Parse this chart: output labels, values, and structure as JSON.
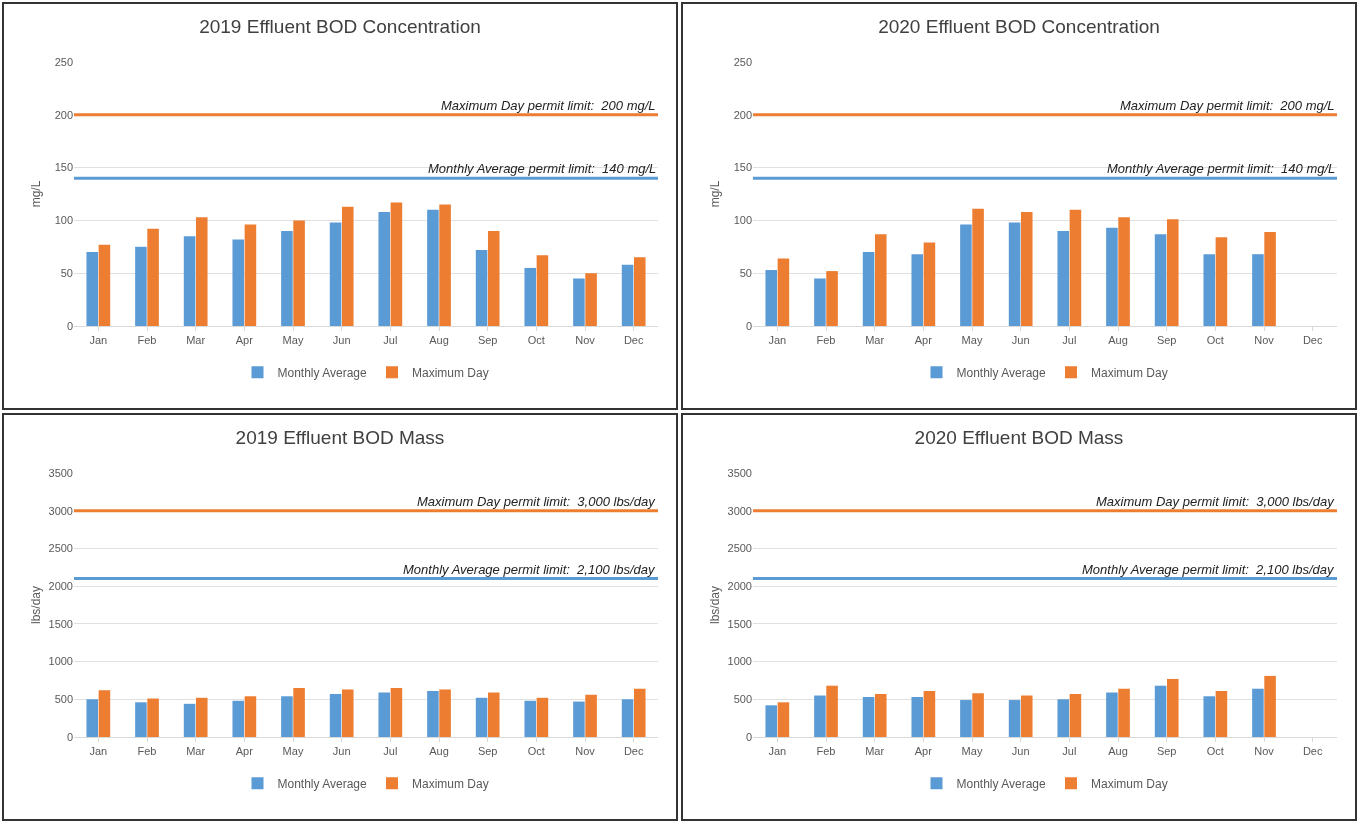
{
  "chart_data": [
    {
      "type": "bar",
      "title": "2019 Effluent BOD Concentration",
      "ylabel": "mg/L",
      "categories": [
        "Jan",
        "Feb",
        "Mar",
        "Apr",
        "May",
        "Jun",
        "Jul",
        "Aug",
        "Sep",
        "Oct",
        "Nov",
        "Dec"
      ],
      "series": [
        {
          "name": "Monthly Average",
          "color": "#5b9bd5",
          "values": [
            70,
            75,
            85,
            82,
            90,
            98,
            108,
            110,
            72,
            55,
            45,
            58
          ]
        },
        {
          "name": "Maximum Day",
          "color": "#ed7d31",
          "values": [
            77,
            92,
            103,
            96,
            100,
            113,
            117,
            115,
            90,
            67,
            50,
            65
          ]
        }
      ],
      "ylim": [
        0,
        250
      ],
      "yticks": [
        0,
        50,
        100,
        150,
        200,
        250
      ],
      "grid": "y",
      "legend": "bottom",
      "ref_lines": [
        {
          "axis": "y",
          "value": 200,
          "label": "Maximum Day permit limit:  200 mg/L",
          "color": "#ed7d31"
        },
        {
          "axis": "y",
          "value": 140,
          "label": "Monthly Average permit limit:  140 mg/L",
          "color": "#5b9bd5"
        }
      ]
    },
    {
      "type": "bar",
      "title": "2020 Effluent BOD Concentration",
      "ylabel": "mg/L",
      "categories": [
        "Jan",
        "Feb",
        "Mar",
        "Apr",
        "May",
        "Jun",
        "Jul",
        "Aug",
        "Sep",
        "Oct",
        "Nov",
        "Dec"
      ],
      "series": [
        {
          "name": "Monthly Average",
          "color": "#5b9bd5",
          "values": [
            53,
            45,
            70,
            68,
            96,
            98,
            90,
            93,
            87,
            68,
            68,
            null
          ]
        },
        {
          "name": "Maximum Day",
          "color": "#ed7d31",
          "values": [
            64,
            52,
            87,
            79,
            111,
            108,
            110,
            103,
            101,
            84,
            89,
            null
          ]
        }
      ],
      "ylim": [
        0,
        250
      ],
      "yticks": [
        0,
        50,
        100,
        150,
        200,
        250
      ],
      "grid": "y",
      "legend": "bottom",
      "ref_lines": [
        {
          "axis": "y",
          "value": 200,
          "label": "Maximum Day permit limit:  200 mg/L",
          "color": "#ed7d31"
        },
        {
          "axis": "y",
          "value": 140,
          "label": "Monthly Average permit limit:  140 mg/L",
          "color": "#5b9bd5"
        }
      ]
    },
    {
      "type": "bar",
      "title": "2019 Effluent BOD Mass",
      "ylabel": "lbs/day",
      "categories": [
        "Jan",
        "Feb",
        "Mar",
        "Apr",
        "May",
        "Jun",
        "Jul",
        "Aug",
        "Sep",
        "Oct",
        "Nov",
        "Dec"
      ],
      "series": [
        {
          "name": "Monthly Average",
          "color": "#5b9bd5",
          "values": [
            500,
            460,
            440,
            480,
            540,
            570,
            590,
            610,
            520,
            480,
            470,
            500
          ]
        },
        {
          "name": "Maximum Day",
          "color": "#ed7d31",
          "values": [
            620,
            510,
            520,
            540,
            650,
            630,
            650,
            630,
            590,
            520,
            560,
            640
          ]
        }
      ],
      "ylim": [
        0,
        3500
      ],
      "yticks": [
        0,
        500,
        1000,
        1500,
        2000,
        2500,
        3000,
        3500
      ],
      "grid": "y",
      "legend": "bottom",
      "ref_lines": [
        {
          "axis": "y",
          "value": 3000,
          "label": "Maximum Day permit limit:  3,000 lbs/day",
          "color": "#ed7d31"
        },
        {
          "axis": "y",
          "value": 2100,
          "label": "Monthly Average permit limit:  2,100 lbs/day",
          "color": "#5b9bd5"
        }
      ]
    },
    {
      "type": "bar",
      "title": "2020 Effluent BOD Mass",
      "ylabel": "lbs/day",
      "categories": [
        "Jan",
        "Feb",
        "Mar",
        "Apr",
        "May",
        "Jun",
        "Jul",
        "Aug",
        "Sep",
        "Oct",
        "Nov",
        "Dec"
      ],
      "series": [
        {
          "name": "Monthly Average",
          "color": "#5b9bd5",
          "values": [
            420,
            550,
            530,
            530,
            490,
            490,
            500,
            590,
            680,
            540,
            640,
            null
          ]
        },
        {
          "name": "Maximum Day",
          "color": "#ed7d31",
          "values": [
            460,
            680,
            570,
            610,
            580,
            550,
            570,
            640,
            770,
            610,
            810,
            null
          ]
        }
      ],
      "ylim": [
        0,
        3500
      ],
      "yticks": [
        0,
        500,
        1000,
        1500,
        2000,
        2500,
        3000,
        3500
      ],
      "grid": "y",
      "legend": "bottom",
      "ref_lines": [
        {
          "axis": "y",
          "value": 3000,
          "label": "Maximum Day permit limit:  3,000 lbs/day",
          "color": "#ed7d31"
        },
        {
          "axis": "y",
          "value": 2100,
          "label": "Monthly Average permit limit:  2,100 lbs/day",
          "color": "#5b9bd5"
        }
      ]
    }
  ]
}
